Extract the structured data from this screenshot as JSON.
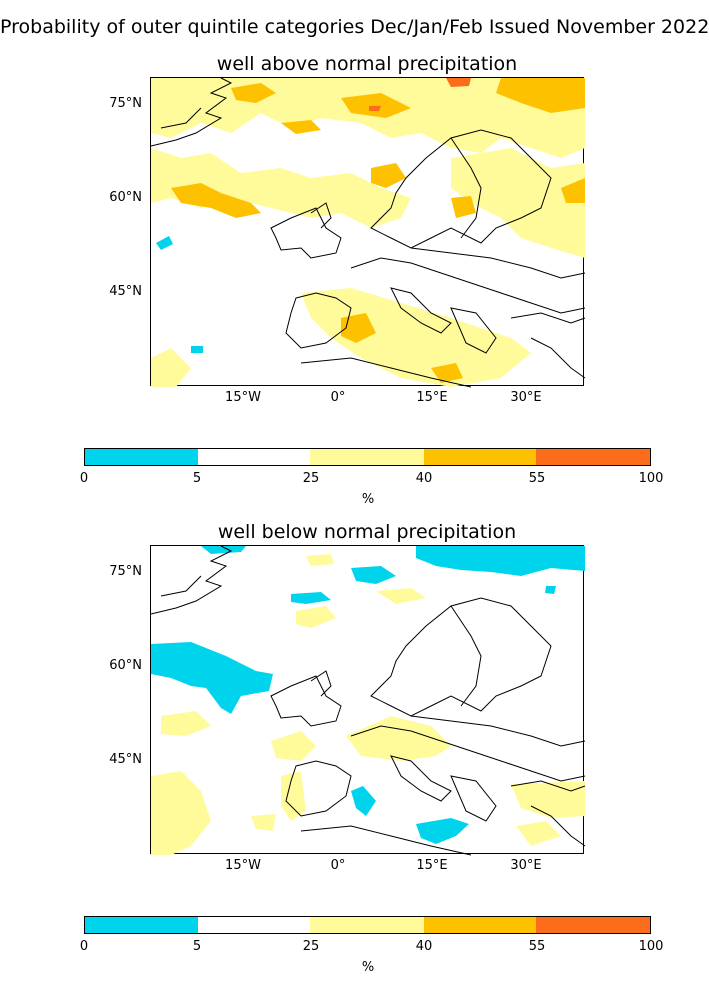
{
  "title": "Probability of outer quintile categories Dec/Jan/Feb Issued November 2022",
  "palette": {
    "cyan": "#00d4ec",
    "white": "#ffffff",
    "pale_yellow": "#fffb9b",
    "amber": "#fec100",
    "orange": "#fc6d1b",
    "border": "#000000"
  },
  "panels": [
    {
      "title": "well above normal precipitation",
      "lat_labels": [
        "75°N",
        "60°N",
        "45°N"
      ],
      "lon_labels": [
        "15°W",
        "0°",
        "15°E",
        "30°E"
      ]
    },
    {
      "title": "well below normal precipitation",
      "lat_labels": [
        "75°N",
        "60°N",
        "45°N"
      ],
      "lon_labels": [
        "15°W",
        "0°",
        "15°E",
        "30°E"
      ]
    }
  ],
  "colorbar": {
    "ticks": [
      "0",
      "5",
      "25",
      "40",
      "55",
      "100"
    ],
    "unit": "%",
    "colors": [
      "#00d4ec",
      "#ffffff",
      "#fffb9b",
      "#fec100",
      "#fc6d1b"
    ]
  }
}
